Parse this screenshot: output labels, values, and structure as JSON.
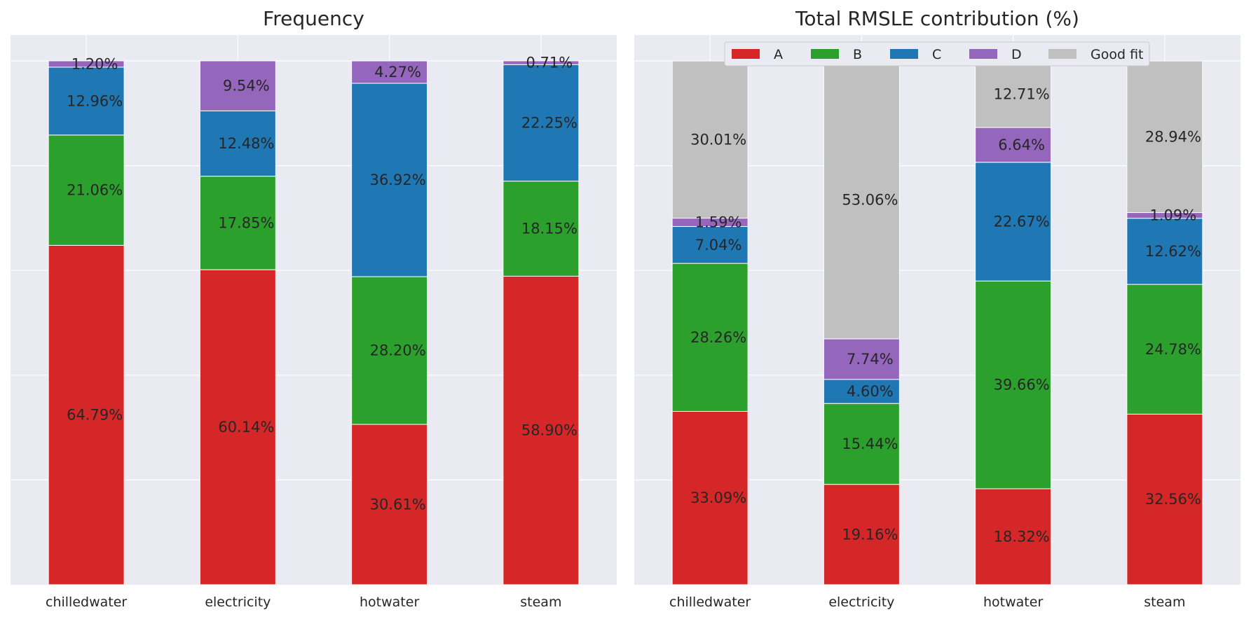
{
  "chart_data": [
    {
      "type": "bar",
      "stacked": true,
      "title": "Frequency",
      "categories": [
        "chilledwater",
        "electricity",
        "hotwater",
        "steam"
      ],
      "ylim": [
        0,
        100
      ],
      "grid": true,
      "series": [
        {
          "name": "A",
          "color": "#d62728",
          "values": [
            64.79,
            60.14,
            30.61,
            58.9
          ],
          "labels": [
            "64.79%",
            "60.14%",
            "30.61%",
            "58.90%"
          ]
        },
        {
          "name": "B",
          "color": "#2ca02c",
          "values": [
            21.06,
            17.85,
            28.2,
            18.15
          ],
          "labels": [
            "21.06%",
            "17.85%",
            "28.20%",
            "18.15%"
          ]
        },
        {
          "name": "C",
          "color": "#1f77b4",
          "values": [
            12.96,
            12.48,
            36.92,
            22.25
          ],
          "labels": [
            "12.96%",
            "12.48%",
            "36.92%",
            "22.25%"
          ]
        },
        {
          "name": "D",
          "color": "#9467bd",
          "values": [
            1.2,
            9.54,
            4.27,
            0.71
          ],
          "labels": [
            "1.20%",
            "9.54%",
            "4.27%",
            "0.71%"
          ]
        }
      ]
    },
    {
      "type": "bar",
      "stacked": true,
      "title": "Total RMSLE contribution (%)",
      "categories": [
        "chilledwater",
        "electricity",
        "hotwater",
        "steam"
      ],
      "ylim": [
        0,
        100
      ],
      "grid": true,
      "legend": "top-right",
      "series": [
        {
          "name": "A",
          "color": "#d62728",
          "values": [
            33.09,
            19.16,
            18.32,
            32.56
          ],
          "labels": [
            "33.09%",
            "19.16%",
            "18.32%",
            "32.56%"
          ]
        },
        {
          "name": "B",
          "color": "#2ca02c",
          "values": [
            28.26,
            15.44,
            39.66,
            24.78
          ],
          "labels": [
            "28.26%",
            "15.44%",
            "39.66%",
            "24.78%"
          ]
        },
        {
          "name": "C",
          "color": "#1f77b4",
          "values": [
            7.04,
            4.6,
            22.67,
            12.62
          ],
          "labels": [
            "7.04%",
            "4.60%",
            "22.67%",
            "12.62%"
          ]
        },
        {
          "name": "D",
          "color": "#9467bd",
          "values": [
            1.59,
            7.74,
            6.64,
            1.09
          ],
          "labels": [
            "1.59%",
            "7.74%",
            "6.64%",
            "1.09%"
          ]
        },
        {
          "name": "Good fit",
          "color": "#c0c0c0",
          "values": [
            30.01,
            53.06,
            12.71,
            28.94
          ],
          "labels": [
            "30.01%",
            "53.06%",
            "12.71%",
            "28.94%"
          ]
        }
      ]
    }
  ]
}
